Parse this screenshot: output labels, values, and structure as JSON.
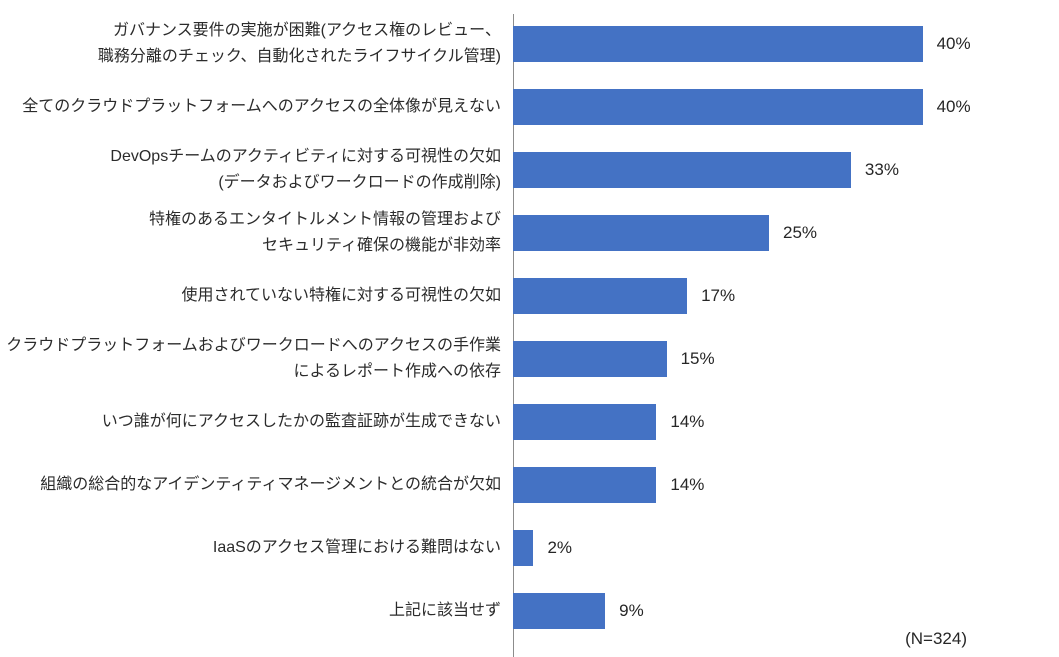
{
  "chart_data": {
    "type": "bar",
    "orientation": "horizontal",
    "title": "",
    "xlabel": "",
    "ylabel": "",
    "xlim": [
      0,
      50
    ],
    "grid": false,
    "legend": false,
    "bar_color": "#4472C4",
    "axis_color": "#8c8c8c",
    "text_color": "#262626",
    "categories": [
      "ガバナンス要件の実施が困難(アクセス権のレビュー、\n職務分離のチェック、自動化されたライフサイクル管理)",
      "全てのクラウドプラットフォームへのアクセスの全体像が見えない",
      "DevOpsチームのアクティビティに対する可視性の欠如\n(データおよびワークロードの作成削除)",
      "特権のあるエンタイトルメント情報の管理および\nセキュリティ確保の機能が非効率",
      "使用されていない特権に対する可視性の欠如",
      "クラウドプラットフォームおよびワークロードへのアクセスの手作業\nによるレポート作成への依存",
      "いつ誰が何にアクセスしたかの監査証跡が生成できない",
      "組織の総合的なアイデンティティマネージメントとの統合が欠如",
      "IaaSのアクセス管理における難問はない",
      "上記に該当せず"
    ],
    "values": [
      40,
      40,
      33,
      25,
      17,
      15,
      14,
      14,
      2,
      9
    ],
    "value_labels": [
      "40%",
      "40%",
      "33%",
      "25%",
      "17%",
      "15%",
      "14%",
      "14%",
      "2%",
      "9%"
    ],
    "note": "(N=324)"
  }
}
